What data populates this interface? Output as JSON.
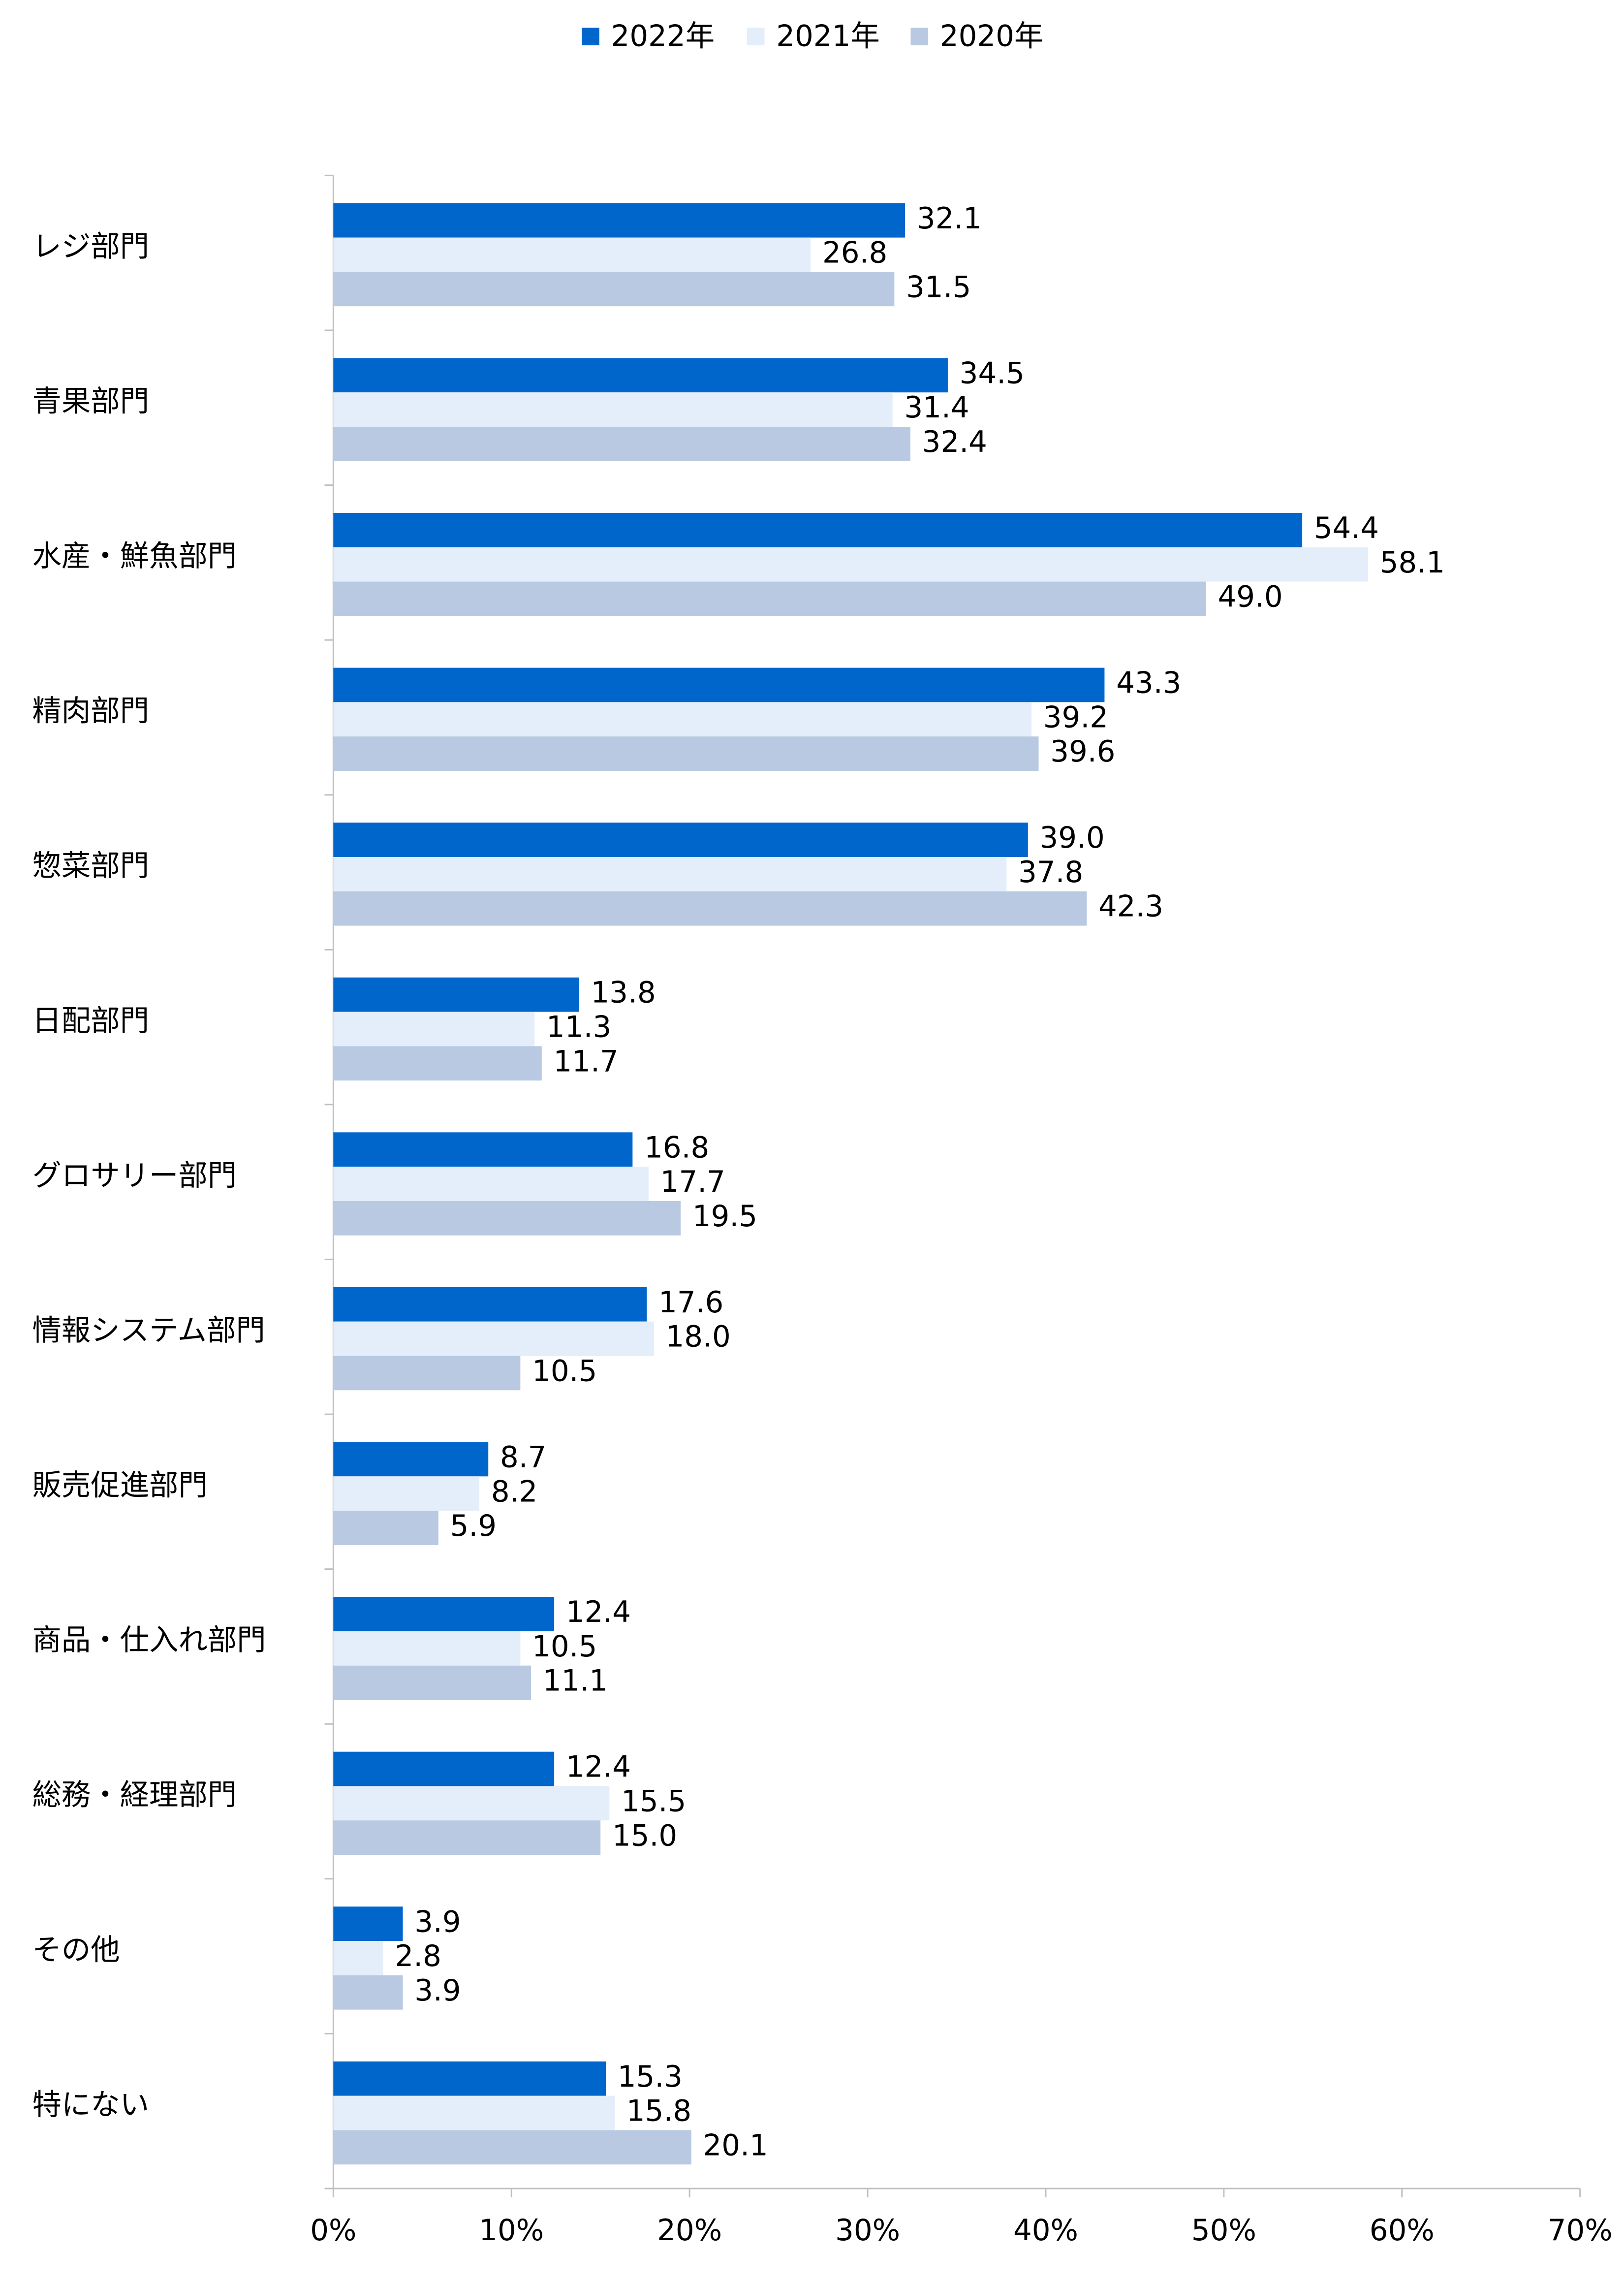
{
  "chart_data": {
    "type": "hbar",
    "categories": [
      "レジ部門",
      "青果部門",
      "水産・鮮魚部門",
      "精肉部門",
      "惣菜部門",
      "日配部門",
      "グロサリー部門",
      "情報システム部門",
      "販売促進部門",
      "商品・仕入れ部門",
      "総務・経理部門",
      "その他",
      "特にない"
    ],
    "series": [
      {
        "name": "2022年",
        "color": "#0066cc",
        "values": [
          32.1,
          34.5,
          54.4,
          43.3,
          39.0,
          13.8,
          16.8,
          17.6,
          8.7,
          12.4,
          12.4,
          3.9,
          15.3
        ],
        "value_labels": [
          "32.1",
          "34.5",
          "54.4",
          "43.3",
          "39.0",
          "13.8",
          "16.8",
          "17.6",
          "8.7",
          "12.4",
          "12.4",
          "3.9",
          "15.3"
        ]
      },
      {
        "name": "2021年",
        "color": "#e3eefa",
        "values": [
          26.8,
          31.4,
          58.1,
          39.2,
          37.8,
          11.3,
          17.7,
          18.0,
          8.2,
          10.5,
          15.5,
          2.8,
          15.8
        ],
        "value_labels": [
          "26.8",
          "31.4",
          "58.1",
          "39.2",
          "37.8",
          "11.3",
          "17.7",
          "18.0",
          "8.2",
          "10.5",
          "15.5",
          "2.8",
          "15.8"
        ]
      },
      {
        "name": "2020年",
        "color": "#b8c9e1",
        "values": [
          31.5,
          32.4,
          49.0,
          39.6,
          42.3,
          11.7,
          19.5,
          10.5,
          5.9,
          11.1,
          15.0,
          3.9,
          20.1
        ],
        "value_labels": [
          "31.5",
          "32.4",
          "49.0",
          "39.6",
          "42.3",
          "11.7",
          "19.5",
          "10.5",
          "5.9",
          "11.1",
          "15.0",
          "3.9",
          "20.1"
        ]
      }
    ],
    "xlim": [
      0,
      70
    ],
    "xticks": [
      {
        "value": 0,
        "label": "0%"
      },
      {
        "value": 10,
        "label": "10%"
      },
      {
        "value": 20,
        "label": "20%"
      },
      {
        "value": 30,
        "label": "30%"
      },
      {
        "value": 40,
        "label": "40%"
      },
      {
        "value": 50,
        "label": "50%"
      },
      {
        "value": 60,
        "label": "60%"
      },
      {
        "value": 70,
        "label": "70%"
      }
    ],
    "legend": "top"
  }
}
